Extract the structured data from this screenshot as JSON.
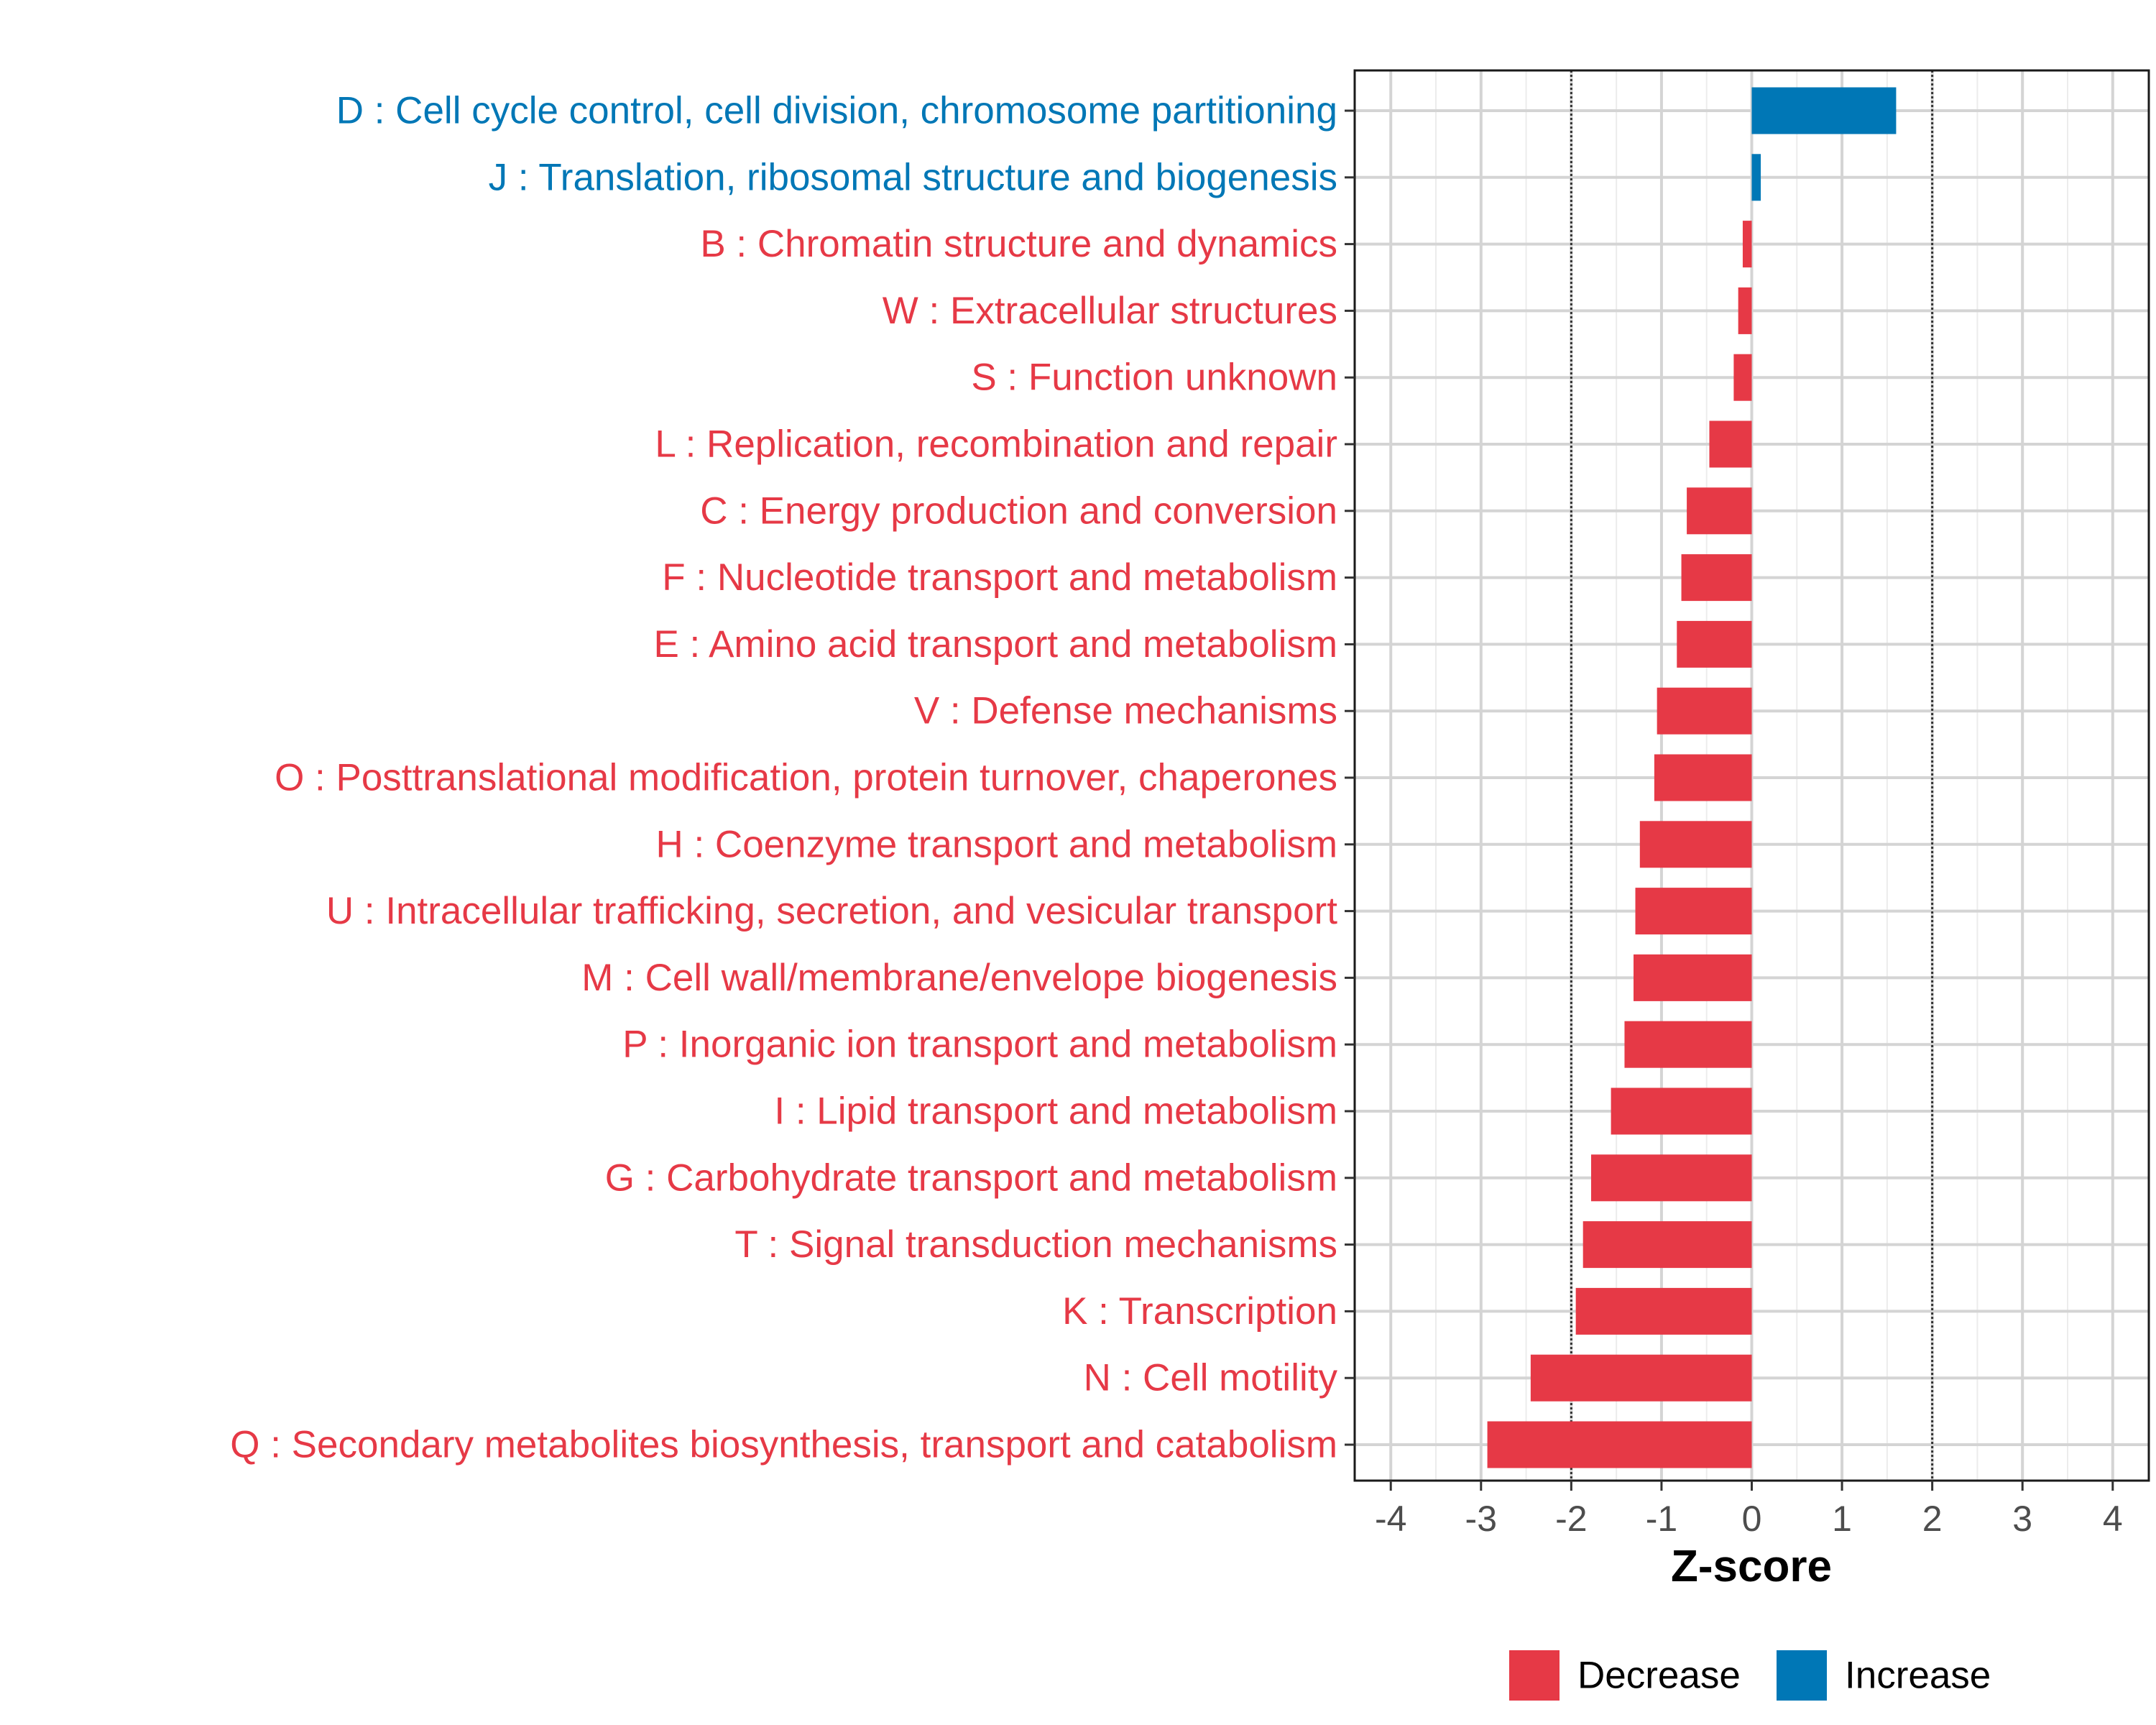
{
  "chart_data": {
    "type": "bar",
    "orientation": "horizontal",
    "title": "",
    "xlabel": "Z-score",
    "ylabel": "",
    "xlim": [
      -4.4,
      4.4
    ],
    "x_ticks": [
      "-4",
      "-3",
      "-2",
      "-1",
      "0",
      "1",
      "2",
      "3",
      "4"
    ],
    "x_tick_values": [
      -4,
      -3,
      -2,
      -1,
      0,
      1,
      2,
      3,
      4
    ],
    "reference_lines": [
      -2,
      2
    ],
    "grid": true,
    "legend_position": "bottom",
    "colors": {
      "Decrease": "#e63946",
      "Increase": "#0077b6"
    },
    "legend": [
      {
        "label": "Decrease",
        "color": "#e63946"
      },
      {
        "label": "Increase",
        "color": "#0077b6"
      }
    ],
    "categories": [
      "D : Cell cycle control, cell division, chromosome partitioning",
      "J : Translation, ribosomal structure and biogenesis",
      "B : Chromatin structure and dynamics",
      "W : Extracellular structures",
      "S : Function unknown",
      "L : Replication, recombination and repair",
      "C : Energy production and conversion",
      "F : Nucleotide transport and metabolism",
      "E : Amino acid transport and metabolism",
      "V : Defense mechanisms",
      "O : Posttranslational modification, protein turnover, chaperones",
      "H : Coenzyme transport and metabolism",
      "U : Intracellular trafficking, secretion, and vesicular transport",
      "M : Cell wall/membrane/envelope biogenesis",
      "P : Inorganic ion transport and metabolism",
      "I : Lipid transport and metabolism",
      "G : Carbohydrate transport and metabolism",
      "T : Signal transduction mechanisms",
      "K : Transcription",
      "N : Cell motility",
      "Q : Secondary metabolites biosynthesis, transport and catabolism"
    ],
    "values": [
      1.6,
      0.1,
      -0.1,
      -0.15,
      -0.2,
      -0.47,
      -0.72,
      -0.78,
      -0.83,
      -1.05,
      -1.08,
      -1.24,
      -1.29,
      -1.31,
      -1.41,
      -1.56,
      -1.78,
      -1.87,
      -1.95,
      -2.45,
      -2.93
    ],
    "groups": [
      "Increase",
      "Increase",
      "Decrease",
      "Decrease",
      "Decrease",
      "Decrease",
      "Decrease",
      "Decrease",
      "Decrease",
      "Decrease",
      "Decrease",
      "Decrease",
      "Decrease",
      "Decrease",
      "Decrease",
      "Decrease",
      "Decrease",
      "Decrease",
      "Decrease",
      "Decrease",
      "Decrease"
    ]
  }
}
